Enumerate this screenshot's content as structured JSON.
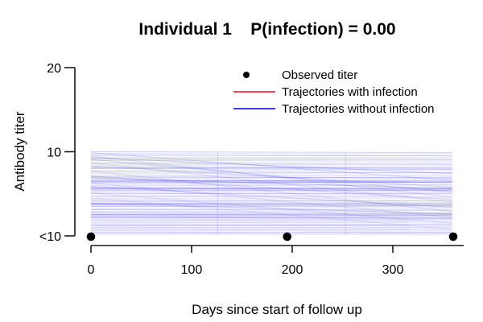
{
  "title": "Individual 1    P(infection) = 0.00",
  "chart_data": {
    "type": "line",
    "title": "Individual 1    P(infection) = 0.00",
    "xlabel": "Days since start of follow up",
    "ylabel": "Antibody titer",
    "x_ticks": [
      0,
      100,
      200,
      300
    ],
    "y_ticks": [
      {
        "value": 0,
        "label": "<10"
      },
      {
        "value": 10,
        "label": "10"
      },
      {
        "value": 20,
        "label": "20"
      }
    ],
    "xlim": [
      0,
      370
    ],
    "ylim": [
      0,
      20
    ],
    "x_domain_days": [
      0,
      359
    ],
    "grid": false,
    "legend_position": "top-right-inside",
    "legend": [
      {
        "label": "Observed titer",
        "marker": "point",
        "color": "#000000"
      },
      {
        "label": "Trajectories with infection",
        "marker": "line",
        "color": "#f8434d"
      },
      {
        "label": "Trajectories without infection",
        "marker": "line",
        "color": "#3c3cf0"
      }
    ],
    "observed_points": [
      {
        "day": 0,
        "titer_value": 0,
        "titer_label": "<10"
      },
      {
        "day": 195,
        "titer_value": 0,
        "titer_label": "<10"
      },
      {
        "day": 360,
        "titer_value": 0,
        "titer_label": "<10"
      }
    ],
    "trajectories_with_infection": [],
    "trajectories_without_infection": [
      [
        10.0,
        9.9,
        0.22
      ],
      [
        9.8,
        9.75,
        0.14
      ],
      [
        9.6,
        9.5,
        0.3
      ],
      [
        9.35,
        9.3,
        0.14
      ],
      [
        9.15,
        9.1,
        0.33
      ],
      [
        8.95,
        8.9,
        0.18
      ],
      [
        8.75,
        8.7,
        0.14
      ],
      [
        8.55,
        8.5,
        0.28
      ],
      [
        8.35,
        8.3,
        0.14
      ],
      [
        8.15,
        8.05,
        0.42
      ],
      [
        8.0,
        7.9,
        0.25
      ],
      [
        7.8,
        7.75,
        0.14
      ],
      [
        7.6,
        7.5,
        0.3
      ],
      [
        7.4,
        7.35,
        0.12
      ],
      [
        7.2,
        7.1,
        0.2
      ],
      [
        7.0,
        6.9,
        0.35
      ],
      [
        6.8,
        6.75,
        0.16
      ],
      [
        6.6,
        6.5,
        0.45
      ],
      [
        6.42,
        6.38,
        0.52
      ],
      [
        6.2,
        6.1,
        0.25
      ],
      [
        6.0,
        5.95,
        0.16
      ],
      [
        5.8,
        5.7,
        0.3
      ],
      [
        5.62,
        5.55,
        0.5
      ],
      [
        5.45,
        5.4,
        0.35
      ],
      [
        5.25,
        5.2,
        0.2
      ],
      [
        5.05,
        5.0,
        0.3
      ],
      [
        4.85,
        4.8,
        0.15
      ],
      [
        4.65,
        4.6,
        0.25
      ],
      [
        4.45,
        4.4,
        0.12
      ],
      [
        4.25,
        4.15,
        0.3
      ],
      [
        4.05,
        4.0,
        0.2
      ],
      [
        3.85,
        3.8,
        0.5
      ],
      [
        3.68,
        3.6,
        0.4
      ],
      [
        3.5,
        3.45,
        0.25
      ],
      [
        3.3,
        3.25,
        0.15
      ],
      [
        3.12,
        3.05,
        0.3
      ],
      [
        2.92,
        2.85,
        0.2
      ],
      [
        2.72,
        2.65,
        0.35
      ],
      [
        2.52,
        2.48,
        0.5
      ],
      [
        2.35,
        2.3,
        0.3
      ],
      [
        2.18,
        2.1,
        0.45
      ],
      [
        2.0,
        1.95,
        0.2
      ],
      [
        1.8,
        1.75,
        0.3
      ],
      [
        1.6,
        1.55,
        0.16
      ],
      [
        1.42,
        1.38,
        0.25
      ],
      [
        1.22,
        1.18,
        0.35
      ],
      [
        1.02,
        0.98,
        0.2
      ],
      [
        0.82,
        0.78,
        0.3
      ],
      [
        0.62,
        0.58,
        0.16
      ],
      [
        0.45,
        0.42,
        0.25
      ],
      [
        0.3,
        0.28,
        0.2
      ],
      [
        0.18,
        0.15,
        0.12
      ],
      [
        9.9,
        6.6,
        0.18
      ],
      [
        9.5,
        4.6,
        0.15
      ],
      [
        9.1,
        5.2,
        0.2
      ],
      [
        8.7,
        4.0,
        0.15
      ],
      [
        8.3,
        5.8,
        0.18
      ],
      [
        7.7,
        2.9,
        0.15
      ],
      [
        7.1,
        4.3,
        0.18
      ],
      [
        6.3,
        2.2,
        0.15
      ],
      [
        5.9,
        3.4,
        0.2
      ],
      [
        5.1,
        1.5,
        0.15
      ],
      [
        4.5,
        0.8,
        0.12
      ],
      [
        9.3,
        7.4,
        0.2
      ],
      [
        6.9,
        5.6,
        0.25
      ],
      [
        3.9,
        2.6,
        0.2
      ]
    ],
    "vertical_artifact_days": [
      126,
      253
    ],
    "colors": {
      "trajectory_without_infection": "#3434d6",
      "trajectory_with_infection": "#f8434d",
      "observed_point": "#000000",
      "axis": "#1a1a1a"
    }
  }
}
